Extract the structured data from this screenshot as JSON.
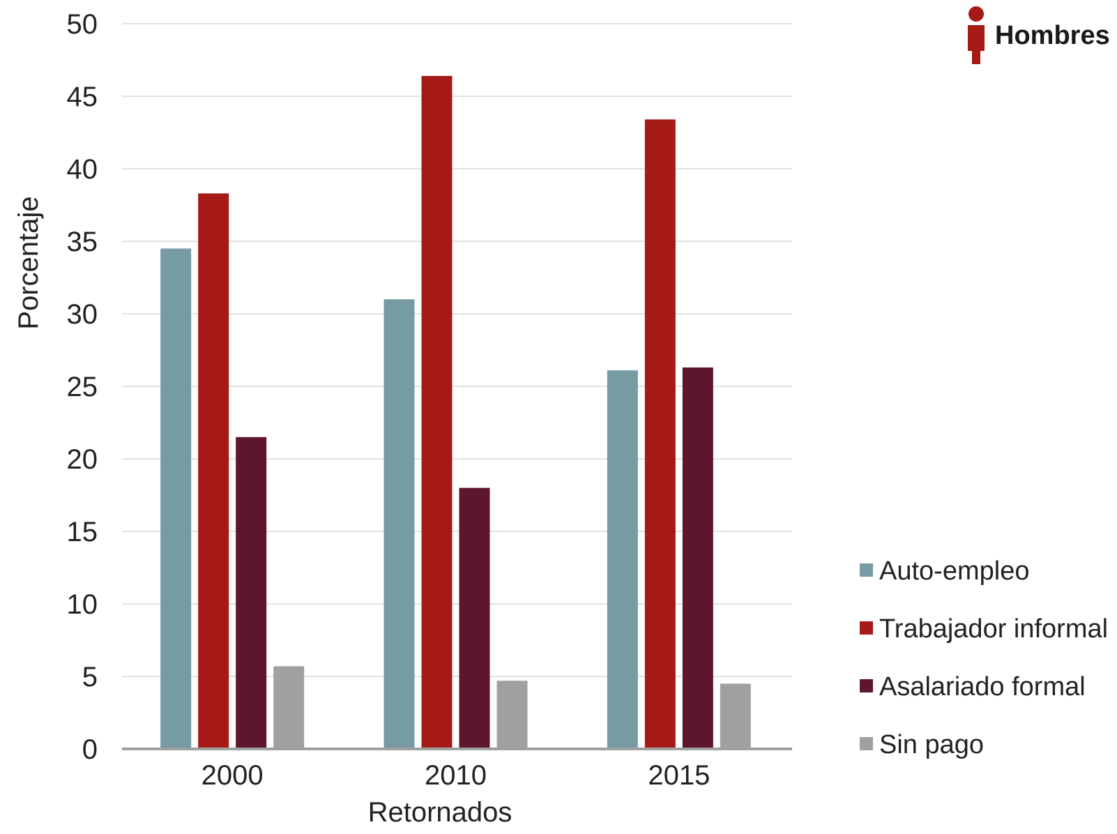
{
  "badge": {
    "label": "Hombres",
    "icon": "person-icon",
    "color": "#a51916"
  },
  "chart_data": {
    "type": "bar",
    "xlabel": "Retornados",
    "ylabel": "Porcentaje",
    "ylim": [
      0,
      50
    ],
    "yticks": [
      0,
      5,
      10,
      15,
      20,
      25,
      30,
      35,
      40,
      45,
      50
    ],
    "grid": true,
    "legend_position": "right",
    "categories": [
      "2000",
      "2010",
      "2015"
    ],
    "series": [
      {
        "name": "Auto-empleo",
        "color": "#769ba3",
        "values": [
          34.5,
          31.0,
          26.1
        ]
      },
      {
        "name": "Trabajador informal",
        "color": "#a51916",
        "values": [
          38.3,
          46.4,
          43.4
        ]
      },
      {
        "name": "Asalariado formal",
        "color": "#5e162d",
        "values": [
          21.5,
          18.0,
          26.3
        ]
      },
      {
        "name": "Sin pago",
        "color": "#a0a0a0",
        "values": [
          5.7,
          4.7,
          4.5
        ]
      }
    ]
  }
}
